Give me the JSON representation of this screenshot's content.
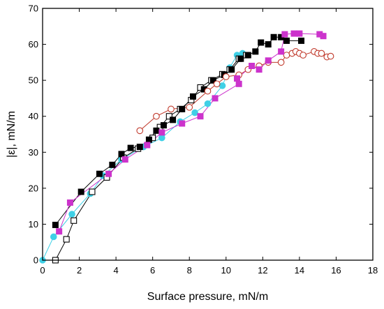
{
  "chart_data": {
    "type": "scatter",
    "xlabel": "Surface pressure, mN/m",
    "ylabel": "|ε|, mN/m",
    "xlim": [
      0,
      18
    ],
    "ylim": [
      0,
      70
    ],
    "xticks": [
      0,
      2,
      4,
      6,
      8,
      10,
      12,
      14,
      16,
      18
    ],
    "yticks": [
      0,
      10,
      20,
      30,
      40,
      50,
      60,
      70
    ],
    "grid": false,
    "series": [
      {
        "marker": "circle-filled",
        "color": "#3fd0e6",
        "points": [
          [
            0,
            0
          ],
          [
            0.6,
            6.5
          ],
          [
            1.6,
            12.8
          ],
          [
            2.6,
            18.5
          ],
          [
            3.3,
            23.5
          ],
          [
            4.3,
            28
          ],
          [
            5.5,
            31.5
          ],
          [
            6.5,
            34
          ],
          [
            7.5,
            38.5
          ],
          [
            8.3,
            41
          ],
          [
            9,
            43.5
          ],
          [
            9.8,
            48.5
          ],
          [
            10.2,
            53.5
          ],
          [
            10.6,
            57
          ],
          [
            10.9,
            57.5
          ]
        ]
      },
      {
        "marker": "square-open",
        "color": "#000000",
        "points": [
          [
            0.7,
            0
          ],
          [
            1.3,
            5.8
          ],
          [
            1.7,
            11
          ],
          [
            2.7,
            19
          ],
          [
            3.5,
            23
          ],
          [
            4.4,
            28.5
          ],
          [
            5.2,
            31
          ],
          [
            6,
            34
          ],
          [
            6.4,
            37
          ],
          [
            6.9,
            40
          ],
          [
            7.5,
            42
          ],
          [
            8.1,
            44.5
          ],
          [
            8.6,
            48
          ],
          [
            9.2,
            50
          ],
          [
            9.8,
            51.7
          ],
          [
            10.2,
            53
          ],
          [
            10.7,
            56
          ],
          [
            11.1,
            57
          ]
        ]
      },
      {
        "marker": "square-filled",
        "color": "#000000",
        "points": [
          [
            0.7,
            9.8
          ],
          [
            2.1,
            19
          ],
          [
            3.1,
            24
          ],
          [
            3.8,
            26.5
          ],
          [
            4.3,
            29.5
          ],
          [
            4.8,
            31.2
          ],
          [
            5.3,
            31.5
          ],
          [
            5.8,
            33.5
          ],
          [
            6.2,
            36
          ],
          [
            6.6,
            37.5
          ],
          [
            7.1,
            39
          ],
          [
            7.6,
            42
          ],
          [
            8.2,
            45.5
          ],
          [
            8.8,
            47.5
          ],
          [
            9.3,
            50
          ],
          [
            9.9,
            51.5
          ],
          [
            10.3,
            53
          ],
          [
            10.8,
            56
          ],
          [
            11.2,
            57
          ],
          [
            11.6,
            58
          ],
          [
            11.9,
            60.5
          ],
          [
            12.3,
            60
          ],
          [
            12.6,
            62
          ],
          [
            13,
            62
          ],
          [
            13.3,
            61
          ],
          [
            14.1,
            61
          ]
        ]
      },
      {
        "marker": "circle-open",
        "color": "#c0392b",
        "points": [
          [
            5.3,
            36
          ],
          [
            6.2,
            40
          ],
          [
            7,
            42
          ],
          [
            8,
            42.5
          ],
          [
            9,
            47
          ],
          [
            9.5,
            49
          ],
          [
            10,
            51
          ],
          [
            10.7,
            51.5
          ],
          [
            11.2,
            53
          ],
          [
            11.8,
            54
          ],
          [
            12.3,
            55
          ],
          [
            13,
            55
          ],
          [
            13.3,
            57
          ],
          [
            13.6,
            57.5
          ],
          [
            13.8,
            58
          ],
          [
            14,
            57.5
          ],
          [
            14.2,
            57
          ],
          [
            14.8,
            58
          ],
          [
            15,
            57.5
          ],
          [
            15.2,
            57.5
          ],
          [
            15.5,
            56.5
          ],
          [
            15.7,
            56.7
          ]
        ]
      },
      {
        "marker": "square-filled",
        "color": "#cc33cc",
        "points": [
          [
            0.9,
            8
          ],
          [
            1.5,
            16
          ],
          [
            3.6,
            24
          ],
          [
            4.5,
            28
          ],
          [
            5.7,
            32
          ],
          [
            6.5,
            35.5
          ],
          [
            7.6,
            38
          ],
          [
            8.6,
            40
          ],
          [
            9.4,
            45
          ],
          [
            10.7,
            49
          ],
          [
            10.6,
            50.5
          ],
          [
            11.4,
            54
          ],
          [
            11.8,
            53
          ],
          [
            12.3,
            55.5
          ],
          [
            13,
            58
          ],
          [
            13.2,
            62.8
          ],
          [
            13.7,
            63
          ],
          [
            14,
            63
          ],
          [
            15.1,
            62.8
          ],
          [
            15.3,
            62.3
          ]
        ]
      }
    ]
  }
}
